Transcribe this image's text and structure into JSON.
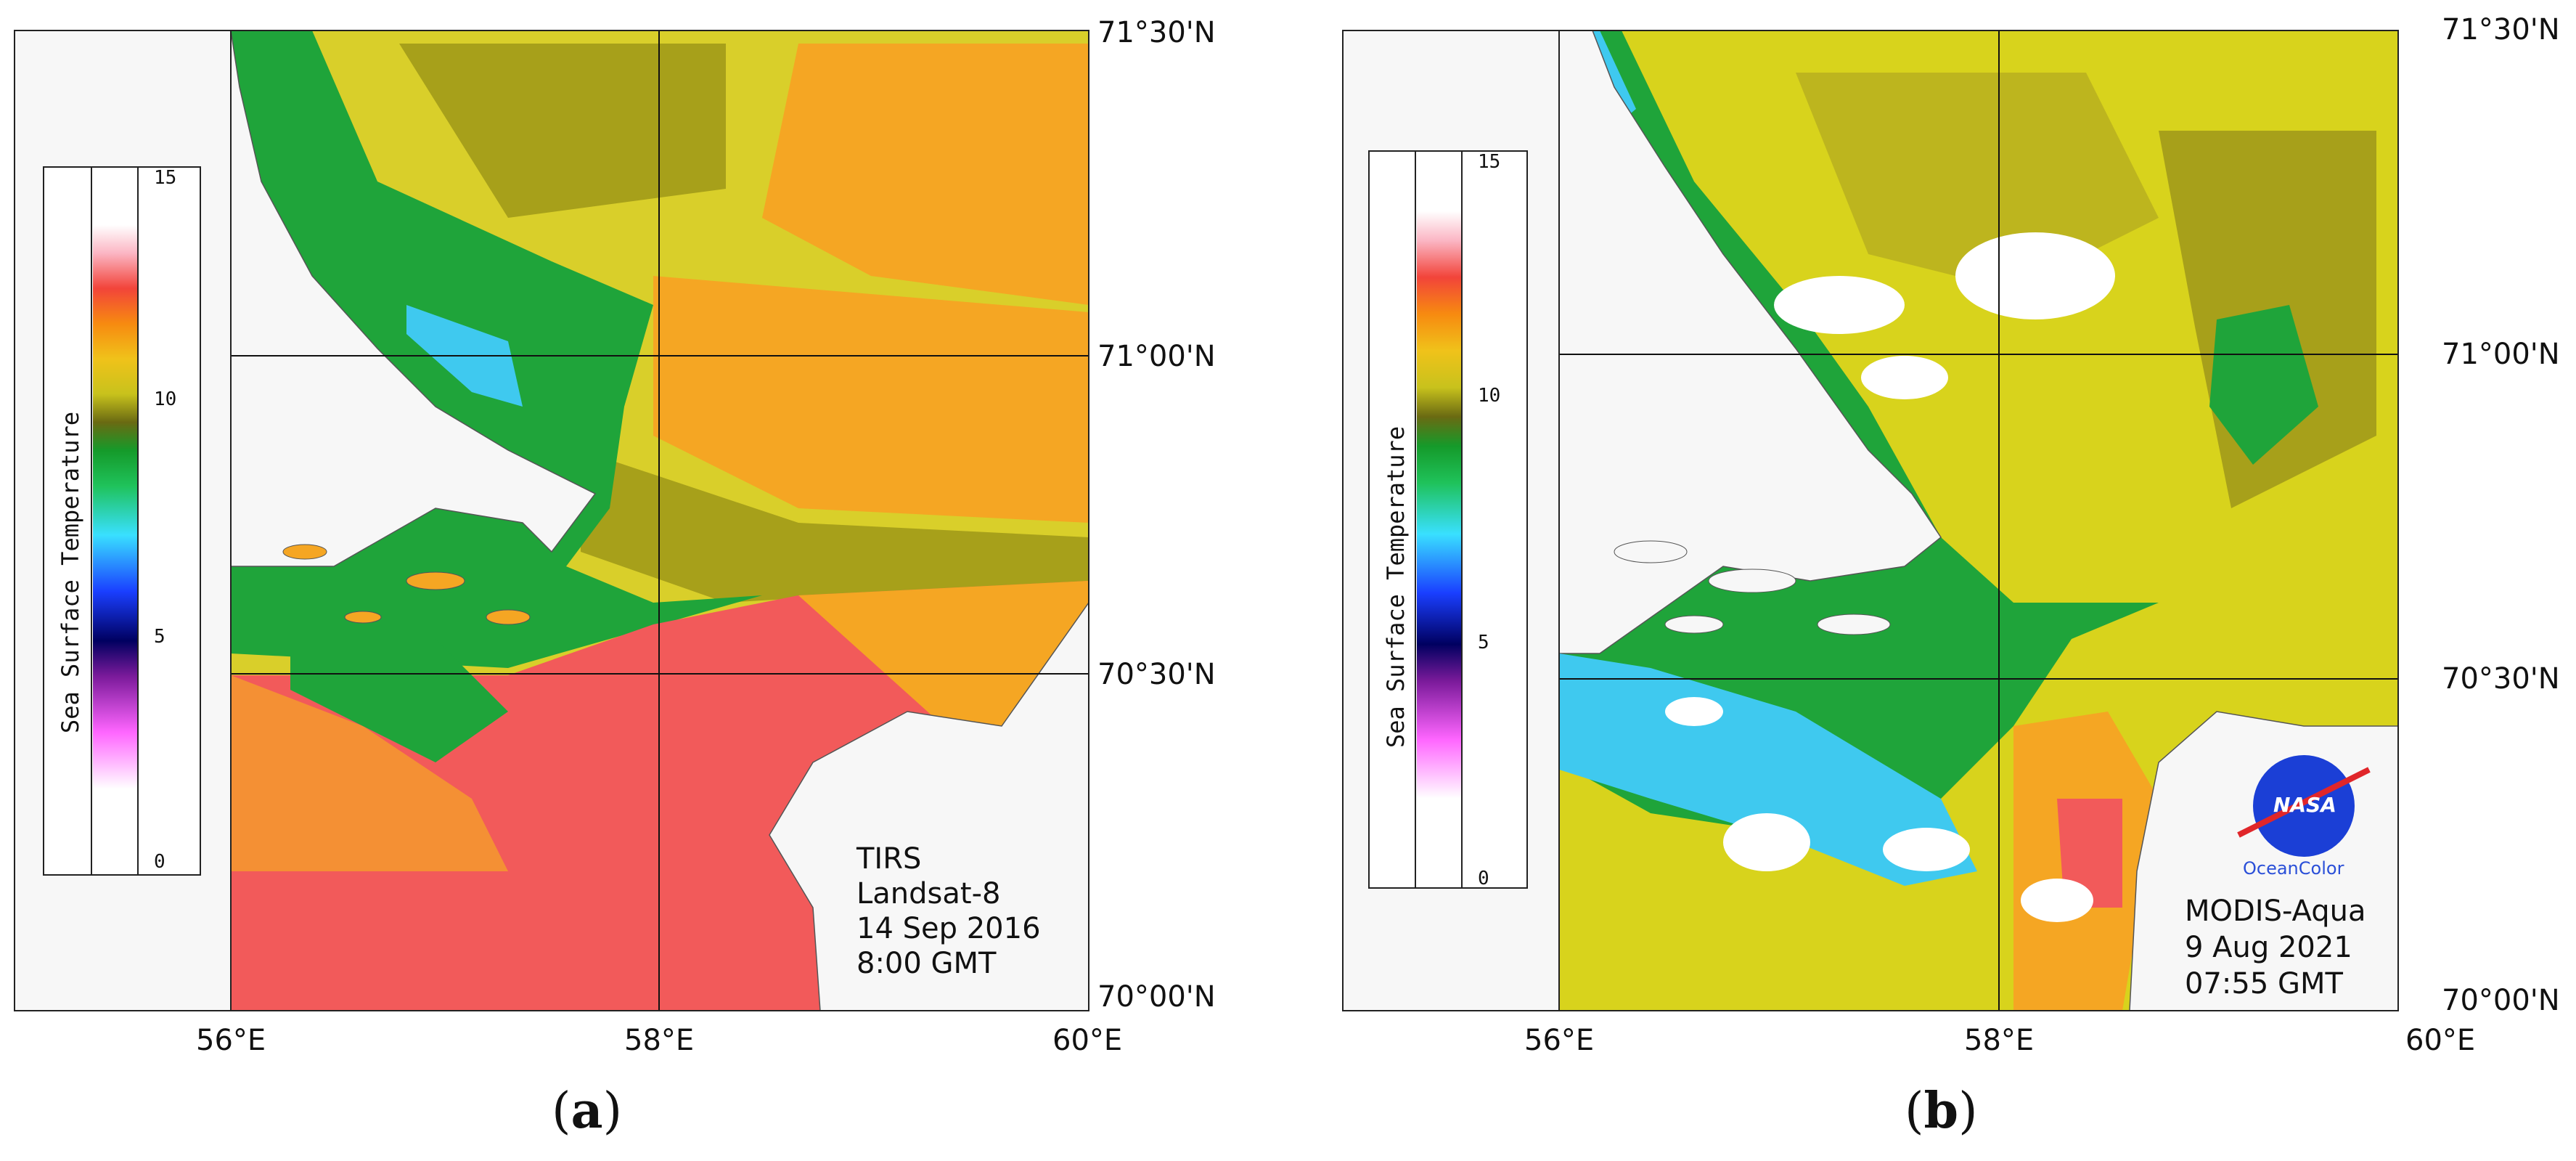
{
  "panels": [
    {
      "caption": "a",
      "sensor_lines": [
        "TIRS",
        "Landsat-8",
        "14 Sep 2016",
        "8:00 GMT"
      ],
      "colorbar_title": "Sea Surface Temperature",
      "colorbar_ticks": [
        "15",
        "10",
        "5",
        "0"
      ],
      "lat_labels": [
        "71°30'N",
        "71°00'N",
        "70°30'N",
        "70°00'N"
      ],
      "lon_labels": [
        "56°E",
        "58°E",
        "60°E"
      ]
    },
    {
      "caption": "b",
      "sensor_lines": [
        "MODIS-Aqua",
        "9 Aug 2021",
        "07:55 GMT"
      ],
      "colorbar_title": "Sea Surface Temperature",
      "colorbar_ticks": [
        "15",
        "10",
        "5",
        "0"
      ],
      "lat_labels": [
        "71°30'N",
        "71°00'N",
        "70°30'N",
        "70°00'N"
      ],
      "lon_labels": [
        "56°E",
        "58°E",
        "60°E"
      ],
      "logo": {
        "word": "NASA",
        "subtitle": "OceanColor"
      }
    }
  ],
  "colors": {
    "land": "#f7f7f7",
    "warm_water": "#f25a5a",
    "orange_water": "#f5a623",
    "yellow_water": "#d8d31c",
    "olive_water": "#a7a01a",
    "green_water": "#1fa43a",
    "cyan_water": "#3fc9ef",
    "cloud": "#ffffff",
    "nasa_blue": "#1b3fd6"
  }
}
